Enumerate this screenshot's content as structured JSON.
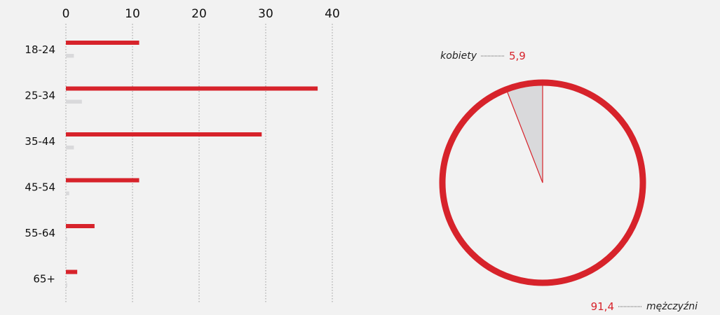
{
  "colors": {
    "background": "#f2f2f2",
    "accent_red": "#d7232b",
    "light_gray": "#d9d9db",
    "gridline": "#9a9a9a",
    "text": "#111111"
  },
  "chart_data": [
    {
      "type": "bar",
      "orientation": "horizontal",
      "title": "",
      "xlabel": "",
      "ylabel": "",
      "xlim": [
        0,
        40
      ],
      "x_ticks": [
        0,
        10,
        20,
        30,
        40
      ],
      "x_tick_labels": [
        "0",
        "10",
        "20",
        "30",
        "40"
      ],
      "axis_position": "top",
      "grid": "dotted vertical",
      "categories": [
        "18-24",
        "25-34",
        "35-44",
        "45-54",
        "55-64",
        "65+"
      ],
      "series": [
        {
          "color": "#d7232b",
          "values": [
            11.0,
            37.8,
            29.4,
            11.0,
            4.3,
            1.7
          ]
        },
        {
          "color": "#d9d9db",
          "values": [
            1.2,
            2.4,
            1.2,
            0.5,
            0.2,
            0.2
          ]
        }
      ]
    },
    {
      "type": "pie",
      "title": "",
      "slices": [
        {
          "label": "kobiety",
          "value": 5.9,
          "value_label": "5,9",
          "color": "#d9d9db"
        },
        {
          "label": "mężczyźni",
          "value": 91.4,
          "value_label": "91,4",
          "color": "#f2f2f2"
        }
      ],
      "outline_color": "#d7232b"
    }
  ]
}
